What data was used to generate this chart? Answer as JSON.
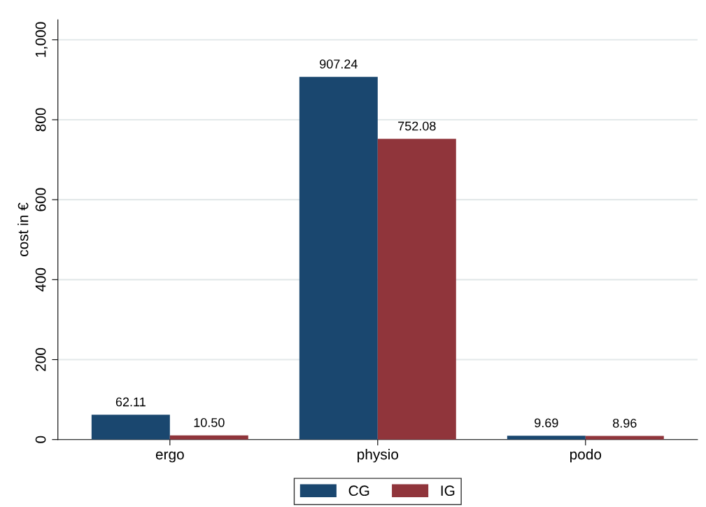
{
  "chart_data": {
    "type": "bar",
    "ylabel": "cost in €",
    "categories": [
      "ergo",
      "physio",
      "podo"
    ],
    "series": [
      {
        "name": "CG",
        "color": "#1a476f",
        "values": [
          62.11,
          907.24,
          9.69
        ],
        "value_labels": [
          "62.11",
          "907.24",
          "9.69"
        ]
      },
      {
        "name": "IG",
        "color": "#90353b",
        "values": [
          10.5,
          752.08,
          8.96
        ],
        "value_labels": [
          "10.50",
          "752.08",
          "8.96"
        ]
      }
    ],
    "ylim": [
      0,
      1050
    ],
    "yticks": [
      0,
      200,
      400,
      600,
      800,
      {
        "value": 1000,
        "label": "1,000"
      }
    ],
    "grid": "y",
    "legend": "bottom"
  }
}
